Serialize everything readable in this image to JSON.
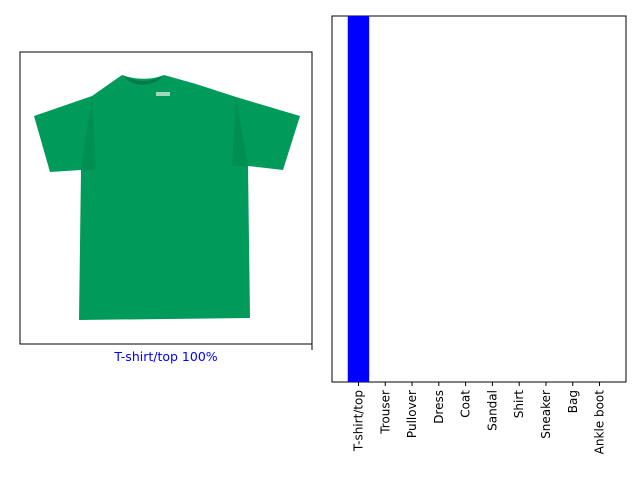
{
  "image_panel": {
    "caption": "T-shirt/top 100%",
    "caption_color": "#0000ff",
    "image_subject": "green-tshirt",
    "shirt_color": "#009a5a"
  },
  "chart_data": {
    "type": "bar",
    "categories": [
      "T-shirt/top",
      "Trouser",
      "Pullover",
      "Dress",
      "Coat",
      "Sandal",
      "Shirt",
      "Sneaker",
      "Bag",
      "Ankle boot"
    ],
    "values": [
      1.0,
      0,
      0,
      0,
      0,
      0,
      0,
      0,
      0,
      0
    ],
    "bar_color": "#0000ff",
    "ylim": [
      0,
      1
    ],
    "grid": false,
    "y_ticks_visible": false
  }
}
